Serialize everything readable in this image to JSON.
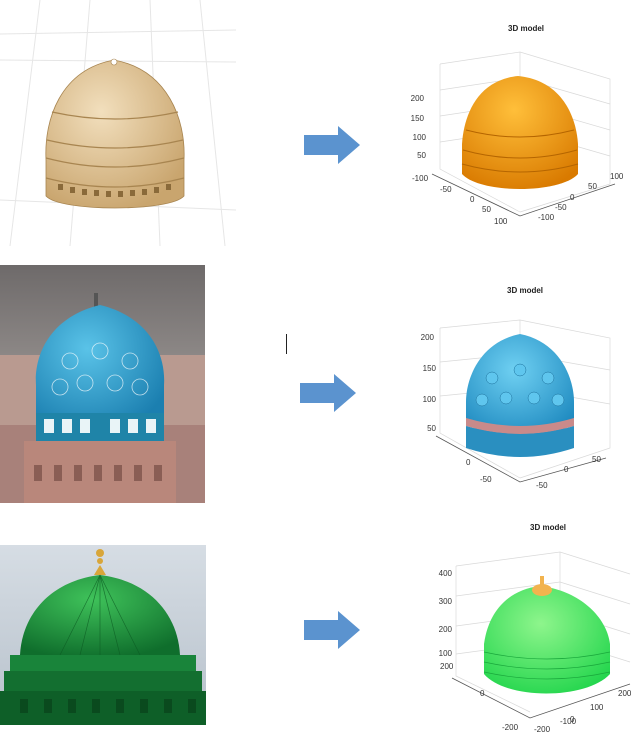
{
  "rows": [
    {
      "name": "ornate-stone-dome",
      "model_title": "3D model",
      "model_color": "#f39a0c",
      "z_ticks": [
        "200",
        "150",
        "100",
        "50"
      ],
      "x_ticks": [
        "-100",
        "-50",
        "0",
        "50",
        "100"
      ],
      "y_ticks": [
        "100",
        "50",
        "0",
        "-50",
        "-100"
      ]
    },
    {
      "name": "turquoise-tiled-dome",
      "model_title": "3D model",
      "model_color": "#2aa4d6",
      "z_ticks": [
        "200",
        "150",
        "100",
        "50"
      ],
      "x_ticks": [
        "0",
        "-50"
      ],
      "y_ticks": [
        "50",
        "0",
        "-50"
      ]
    },
    {
      "name": "green-dome",
      "model_title": "3D model",
      "model_color": "#22dd44",
      "z_ticks": [
        "400",
        "300",
        "200",
        "100"
      ],
      "x_ticks": [
        "200",
        "0",
        "-200"
      ],
      "y_ticks": [
        "200",
        "100",
        "0",
        "-100",
        "-200"
      ]
    }
  ],
  "colors": {
    "arrow": "#5b93cf",
    "grid": "#d9d9d9",
    "axis": "#555555"
  }
}
